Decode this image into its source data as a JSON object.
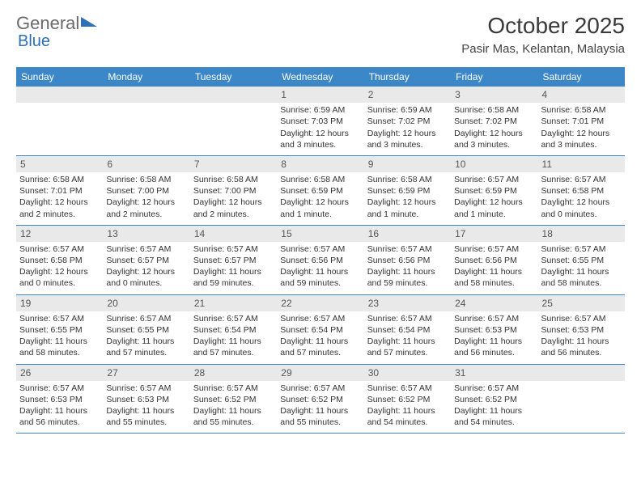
{
  "logo": {
    "part1": "General",
    "part2": "Blue"
  },
  "title": "October 2025",
  "location": "Pasir Mas, Kelantan, Malaysia",
  "header_color": "#3b87c8",
  "day_bg": "#e9e9e9",
  "border_color": "#3b87c8",
  "font_size_body": 10.5,
  "weekdays": [
    "Sunday",
    "Monday",
    "Tuesday",
    "Wednesday",
    "Thursday",
    "Friday",
    "Saturday"
  ],
  "weeks": [
    [
      {
        "day": "",
        "sunrise": "",
        "sunset": "",
        "daylight1": "",
        "daylight2": ""
      },
      {
        "day": "",
        "sunrise": "",
        "sunset": "",
        "daylight1": "",
        "daylight2": ""
      },
      {
        "day": "",
        "sunrise": "",
        "sunset": "",
        "daylight1": "",
        "daylight2": ""
      },
      {
        "day": "1",
        "sunrise": "Sunrise: 6:59 AM",
        "sunset": "Sunset: 7:03 PM",
        "daylight1": "Daylight: 12 hours",
        "daylight2": "and 3 minutes."
      },
      {
        "day": "2",
        "sunrise": "Sunrise: 6:59 AM",
        "sunset": "Sunset: 7:02 PM",
        "daylight1": "Daylight: 12 hours",
        "daylight2": "and 3 minutes."
      },
      {
        "day": "3",
        "sunrise": "Sunrise: 6:58 AM",
        "sunset": "Sunset: 7:02 PM",
        "daylight1": "Daylight: 12 hours",
        "daylight2": "and 3 minutes."
      },
      {
        "day": "4",
        "sunrise": "Sunrise: 6:58 AM",
        "sunset": "Sunset: 7:01 PM",
        "daylight1": "Daylight: 12 hours",
        "daylight2": "and 3 minutes."
      }
    ],
    [
      {
        "day": "5",
        "sunrise": "Sunrise: 6:58 AM",
        "sunset": "Sunset: 7:01 PM",
        "daylight1": "Daylight: 12 hours",
        "daylight2": "and 2 minutes."
      },
      {
        "day": "6",
        "sunrise": "Sunrise: 6:58 AM",
        "sunset": "Sunset: 7:00 PM",
        "daylight1": "Daylight: 12 hours",
        "daylight2": "and 2 minutes."
      },
      {
        "day": "7",
        "sunrise": "Sunrise: 6:58 AM",
        "sunset": "Sunset: 7:00 PM",
        "daylight1": "Daylight: 12 hours",
        "daylight2": "and 2 minutes."
      },
      {
        "day": "8",
        "sunrise": "Sunrise: 6:58 AM",
        "sunset": "Sunset: 6:59 PM",
        "daylight1": "Daylight: 12 hours",
        "daylight2": "and 1 minute."
      },
      {
        "day": "9",
        "sunrise": "Sunrise: 6:58 AM",
        "sunset": "Sunset: 6:59 PM",
        "daylight1": "Daylight: 12 hours",
        "daylight2": "and 1 minute."
      },
      {
        "day": "10",
        "sunrise": "Sunrise: 6:57 AM",
        "sunset": "Sunset: 6:59 PM",
        "daylight1": "Daylight: 12 hours",
        "daylight2": "and 1 minute."
      },
      {
        "day": "11",
        "sunrise": "Sunrise: 6:57 AM",
        "sunset": "Sunset: 6:58 PM",
        "daylight1": "Daylight: 12 hours",
        "daylight2": "and 0 minutes."
      }
    ],
    [
      {
        "day": "12",
        "sunrise": "Sunrise: 6:57 AM",
        "sunset": "Sunset: 6:58 PM",
        "daylight1": "Daylight: 12 hours",
        "daylight2": "and 0 minutes."
      },
      {
        "day": "13",
        "sunrise": "Sunrise: 6:57 AM",
        "sunset": "Sunset: 6:57 PM",
        "daylight1": "Daylight: 12 hours",
        "daylight2": "and 0 minutes."
      },
      {
        "day": "14",
        "sunrise": "Sunrise: 6:57 AM",
        "sunset": "Sunset: 6:57 PM",
        "daylight1": "Daylight: 11 hours",
        "daylight2": "and 59 minutes."
      },
      {
        "day": "15",
        "sunrise": "Sunrise: 6:57 AM",
        "sunset": "Sunset: 6:56 PM",
        "daylight1": "Daylight: 11 hours",
        "daylight2": "and 59 minutes."
      },
      {
        "day": "16",
        "sunrise": "Sunrise: 6:57 AM",
        "sunset": "Sunset: 6:56 PM",
        "daylight1": "Daylight: 11 hours",
        "daylight2": "and 59 minutes."
      },
      {
        "day": "17",
        "sunrise": "Sunrise: 6:57 AM",
        "sunset": "Sunset: 6:56 PM",
        "daylight1": "Daylight: 11 hours",
        "daylight2": "and 58 minutes."
      },
      {
        "day": "18",
        "sunrise": "Sunrise: 6:57 AM",
        "sunset": "Sunset: 6:55 PM",
        "daylight1": "Daylight: 11 hours",
        "daylight2": "and 58 minutes."
      }
    ],
    [
      {
        "day": "19",
        "sunrise": "Sunrise: 6:57 AM",
        "sunset": "Sunset: 6:55 PM",
        "daylight1": "Daylight: 11 hours",
        "daylight2": "and 58 minutes."
      },
      {
        "day": "20",
        "sunrise": "Sunrise: 6:57 AM",
        "sunset": "Sunset: 6:55 PM",
        "daylight1": "Daylight: 11 hours",
        "daylight2": "and 57 minutes."
      },
      {
        "day": "21",
        "sunrise": "Sunrise: 6:57 AM",
        "sunset": "Sunset: 6:54 PM",
        "daylight1": "Daylight: 11 hours",
        "daylight2": "and 57 minutes."
      },
      {
        "day": "22",
        "sunrise": "Sunrise: 6:57 AM",
        "sunset": "Sunset: 6:54 PM",
        "daylight1": "Daylight: 11 hours",
        "daylight2": "and 57 minutes."
      },
      {
        "day": "23",
        "sunrise": "Sunrise: 6:57 AM",
        "sunset": "Sunset: 6:54 PM",
        "daylight1": "Daylight: 11 hours",
        "daylight2": "and 57 minutes."
      },
      {
        "day": "24",
        "sunrise": "Sunrise: 6:57 AM",
        "sunset": "Sunset: 6:53 PM",
        "daylight1": "Daylight: 11 hours",
        "daylight2": "and 56 minutes."
      },
      {
        "day": "25",
        "sunrise": "Sunrise: 6:57 AM",
        "sunset": "Sunset: 6:53 PM",
        "daylight1": "Daylight: 11 hours",
        "daylight2": "and 56 minutes."
      }
    ],
    [
      {
        "day": "26",
        "sunrise": "Sunrise: 6:57 AM",
        "sunset": "Sunset: 6:53 PM",
        "daylight1": "Daylight: 11 hours",
        "daylight2": "and 56 minutes."
      },
      {
        "day": "27",
        "sunrise": "Sunrise: 6:57 AM",
        "sunset": "Sunset: 6:53 PM",
        "daylight1": "Daylight: 11 hours",
        "daylight2": "and 55 minutes."
      },
      {
        "day": "28",
        "sunrise": "Sunrise: 6:57 AM",
        "sunset": "Sunset: 6:52 PM",
        "daylight1": "Daylight: 11 hours",
        "daylight2": "and 55 minutes."
      },
      {
        "day": "29",
        "sunrise": "Sunrise: 6:57 AM",
        "sunset": "Sunset: 6:52 PM",
        "daylight1": "Daylight: 11 hours",
        "daylight2": "and 55 minutes."
      },
      {
        "day": "30",
        "sunrise": "Sunrise: 6:57 AM",
        "sunset": "Sunset: 6:52 PM",
        "daylight1": "Daylight: 11 hours",
        "daylight2": "and 54 minutes."
      },
      {
        "day": "31",
        "sunrise": "Sunrise: 6:57 AM",
        "sunset": "Sunset: 6:52 PM",
        "daylight1": "Daylight: 11 hours",
        "daylight2": "and 54 minutes."
      },
      {
        "day": "",
        "sunrise": "",
        "sunset": "",
        "daylight1": "",
        "daylight2": ""
      }
    ]
  ]
}
